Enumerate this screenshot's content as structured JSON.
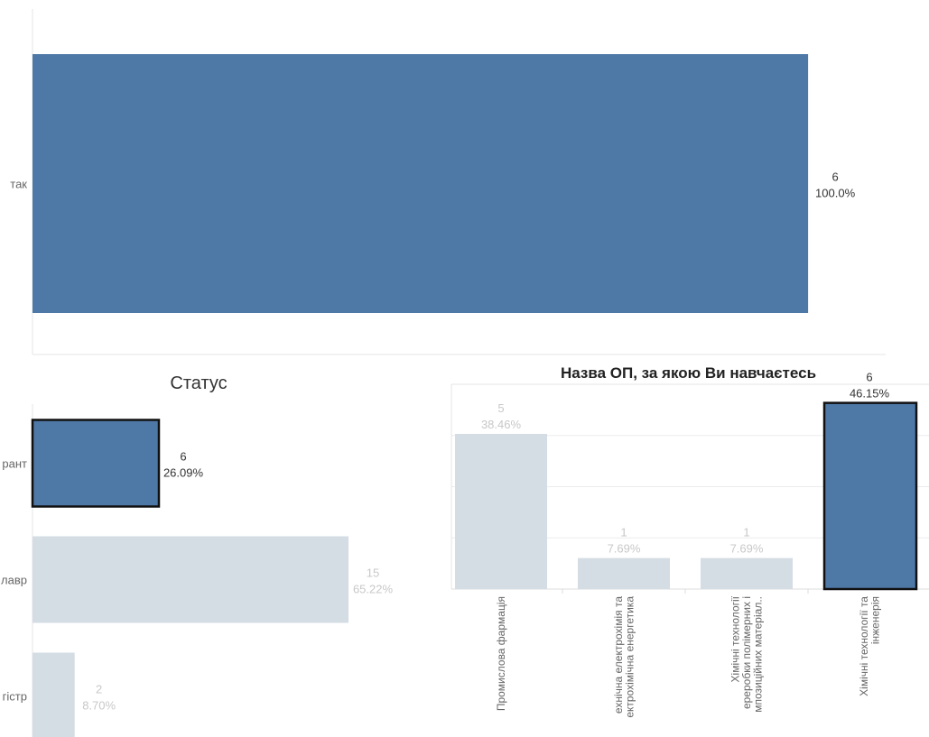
{
  "chart_data": [
    {
      "type": "bar",
      "orientation": "horizontal",
      "title": "",
      "categories": [
        "так"
      ],
      "values": [
        6
      ],
      "labels": [
        [
          "6",
          "100.0%"
        ]
      ],
      "highlighted": [
        true
      ],
      "xlim": [
        0,
        6.6
      ],
      "grid": false
    },
    {
      "type": "bar",
      "orientation": "horizontal",
      "title": "Статус",
      "categories": [
        "рант",
        "лавр",
        "гістр"
      ],
      "values": [
        6,
        15,
        2
      ],
      "labels": [
        [
          "6",
          "26.09%"
        ],
        [
          "15",
          "65.22%"
        ],
        [
          "2",
          "8.70%"
        ]
      ],
      "highlighted": [
        true,
        false,
        false
      ],
      "xlim": [
        0,
        16.5
      ],
      "grid": false
    },
    {
      "type": "bar",
      "orientation": "vertical",
      "title": "Назва ОП, за якою Ви навчаєтесь",
      "categories": [
        [
          "Промислова фармація"
        ],
        [
          "ехнічна електрохімія та",
          "ектрохімічна енергетика"
        ],
        [
          "Хімічні технології",
          "ереробки полімерних і",
          "мпозиційних матеріал.."
        ],
        [
          "Хімічні технології та",
          "інженерія"
        ]
      ],
      "values": [
        5,
        1,
        1,
        6
      ],
      "labels": [
        [
          "5",
          "38.46%"
        ],
        [
          "1",
          "7.69%"
        ],
        [
          "1",
          "7.69%"
        ],
        [
          "6",
          "46.15%"
        ]
      ],
      "highlighted": [
        false,
        false,
        false,
        true
      ],
      "ylim": [
        0,
        6.6
      ],
      "grid": true
    }
  ],
  "colors": {
    "selected": "#4e79a7",
    "unselected": "#d4dce4",
    "selected_text": "#333333",
    "unselected_text": "#c8c8c8",
    "axis_text": "#666666"
  }
}
